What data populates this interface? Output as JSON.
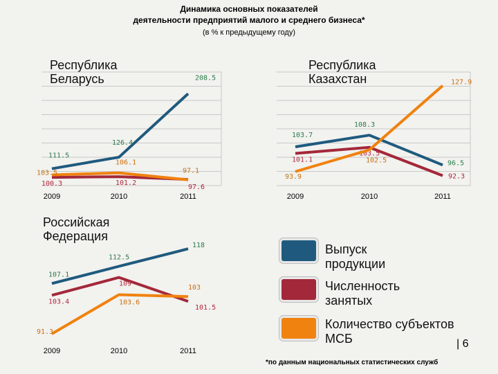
{
  "title_line1": "Динамика основных показателей",
  "title_line2": "деятельности предприятий малого и среднего бизнеса*",
  "subtitle": "(в % к предыдущему году)",
  "footnote": "*по данным национальных статистических служб",
  "page_number": "| 6",
  "legend": [
    {
      "label_line1": "Выпуск",
      "label_line2": "продукции",
      "color": "#1f5a7e"
    },
    {
      "label_line1": "Численность",
      "label_line2": "занятых",
      "color": "#a3283a"
    },
    {
      "label_line1": "Количество субъектов",
      "label_line2": "МСБ",
      "color": "#f0820f"
    }
  ],
  "colors": {
    "output": "#1f5a7e",
    "employment": "#a3283a",
    "entities": "#f0820f",
    "label_output": "#2a7a4a",
    "label_employment": "#b0283a",
    "label_entities": "#c87010"
  },
  "chart_data": [
    {
      "type": "line",
      "title_line1": "Республика",
      "title_line2": "Беларусь",
      "categories": [
        "2009",
        "2010",
        "2011"
      ],
      "grid": true,
      "series": [
        {
          "key": "output",
          "values": [
            111.5,
            126.4,
            208.5
          ],
          "labels": [
            "111.5",
            "126.4",
            "208.5"
          ]
        },
        {
          "key": "employment",
          "values": [
            100.3,
            101.2,
            97.6
          ],
          "labels": [
            "100.3",
            "101.2",
            "97.6"
          ]
        },
        {
          "key": "entities",
          "values": [
            103.5,
            106.1,
            97.1
          ],
          "labels": [
            "103.5",
            "106.1",
            "97.1"
          ]
        }
      ]
    },
    {
      "type": "line",
      "title_line1": "Республика",
      "title_line2": "Казахстан",
      "categories": [
        "2009",
        "2010",
        "2011"
      ],
      "grid": true,
      "series": [
        {
          "key": "output",
          "values": [
            103.7,
            108.3,
            96.5
          ],
          "labels": [
            "103.7",
            "108.3",
            "96.5"
          ]
        },
        {
          "key": "employment",
          "values": [
            101.1,
            103.5,
            92.3
          ],
          "labels": [
            "101.1",
            "103.5",
            "92.3"
          ]
        },
        {
          "key": "entities",
          "values": [
            93.9,
            102.5,
            127.9
          ],
          "labels": [
            "93.9",
            "102.5",
            "127.9"
          ]
        }
      ]
    },
    {
      "type": "line",
      "title_line1": "Российская",
      "title_line2": "Федерация",
      "categories": [
        "2009",
        "2010",
        "2011"
      ],
      "grid": false,
      "series": [
        {
          "key": "output",
          "values": [
            107.1,
            112.5,
            118
          ],
          "labels": [
            "107.1",
            "112.5",
            "118"
          ]
        },
        {
          "key": "employment",
          "values": [
            103.4,
            109,
            101.5
          ],
          "labels": [
            "103.4",
            "109",
            "101.5"
          ]
        },
        {
          "key": "entities",
          "values": [
            91.3,
            103.6,
            103
          ],
          "labels": [
            "91.3",
            "103.6",
            "103"
          ]
        }
      ]
    }
  ]
}
